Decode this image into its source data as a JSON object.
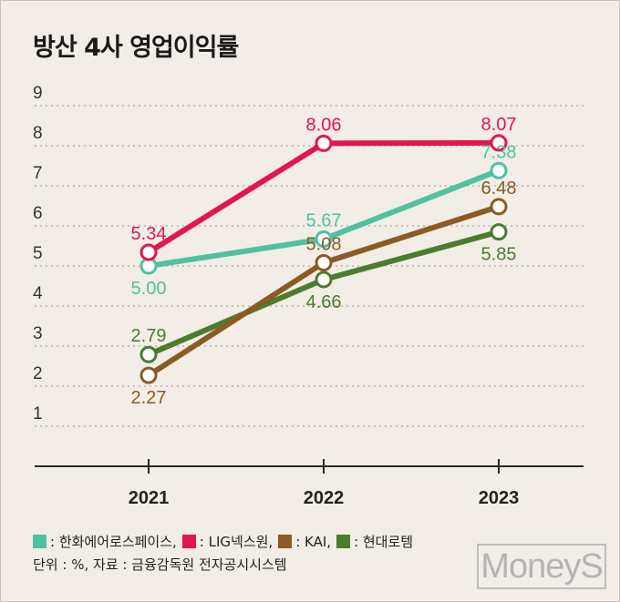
{
  "title": "방산 4사 영업이익률",
  "legend": {
    "hanwha": ": 한화에어로스페이스,",
    "lig": ": LIG넥스원,",
    "kai": ": KAI,",
    "hyundai": ": 현대로템"
  },
  "source": "단위 : %, 자료 : 금융감독원 전자공시시스템",
  "watermark": "MoneyS",
  "chart_data": {
    "type": "line",
    "title": "방산 4사 영업이익률",
    "categories": [
      "2021",
      "2022",
      "2023"
    ],
    "y_ticks": [
      "1",
      "2",
      "3",
      "4",
      "5",
      "6",
      "7",
      "8",
      "9"
    ],
    "ylim": [
      0,
      9
    ],
    "grid": true,
    "legend_position": "bottom",
    "series": [
      {
        "name": "한화에어로스페이스",
        "color": "#4fc1a0",
        "values": [
          5.0,
          5.67,
          7.38
        ],
        "labels": [
          "5.00",
          "5.67",
          "7.38"
        ],
        "label_side": [
          "below",
          "above",
          "above"
        ]
      },
      {
        "name": "LIG넥스원",
        "color": "#e3164b",
        "values": [
          5.34,
          8.06,
          8.07
        ],
        "labels": [
          "5.34",
          "8.06",
          "8.07"
        ],
        "label_side": [
          "above",
          "above",
          "above"
        ]
      },
      {
        "name": "KAI",
        "color": "#8c5a24",
        "values": [
          2.27,
          5.08,
          6.48
        ],
        "labels": [
          "2.27",
          "5.08",
          "6.48"
        ],
        "label_side": [
          "below",
          "above",
          "above"
        ]
      },
      {
        "name": "현대로템",
        "color": "#4b7d2e",
        "values": [
          2.79,
          4.66,
          5.85
        ],
        "labels": [
          "2.79",
          "4.66",
          "5.85"
        ],
        "label_side": [
          "above",
          "below",
          "below"
        ]
      }
    ]
  }
}
